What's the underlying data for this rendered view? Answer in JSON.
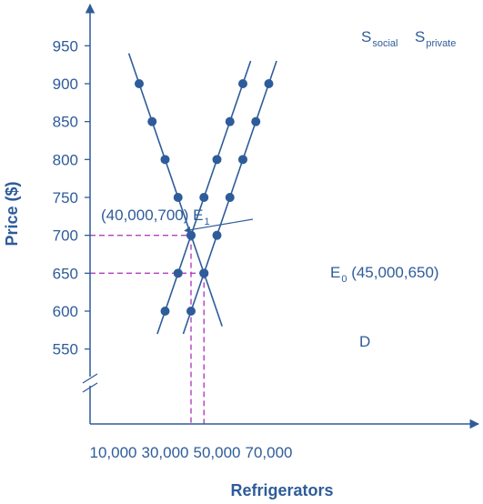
{
  "chart_data": {
    "type": "line",
    "xlabel": "Refrigerators",
    "ylabel": "Price ($)",
    "xlim": [
      0,
      75000
    ],
    "ylim": [
      490,
      970
    ],
    "x_ticks": [
      {
        "value": 10000,
        "label": "10,000"
      },
      {
        "value": 30000,
        "label": "30,000"
      },
      {
        "value": 50000,
        "label": "50,000"
      },
      {
        "value": 70000,
        "label": "70,000"
      }
    ],
    "y_ticks": [
      {
        "value": 550,
        "label": "550"
      },
      {
        "value": 600,
        "label": "600"
      },
      {
        "value": 650,
        "label": "650"
      },
      {
        "value": 700,
        "label": "700"
      },
      {
        "value": 750,
        "label": "750"
      },
      {
        "value": 800,
        "label": "800"
      },
      {
        "value": 850,
        "label": "850"
      },
      {
        "value": 900,
        "label": "900"
      },
      {
        "value": 950,
        "label": "950"
      }
    ],
    "axis_break": "y",
    "series": [
      {
        "name": "D",
        "points": [
          [
            20000,
            900
          ],
          [
            25000,
            850
          ],
          [
            30000,
            800
          ],
          [
            35000,
            750
          ],
          [
            40000,
            700
          ],
          [
            45000,
            650
          ]
        ],
        "line_extent": [
          [
            16000,
            940
          ],
          [
            52000,
            580
          ]
        ]
      },
      {
        "name": "S",
        "name_sub": "social",
        "points": [
          [
            30000,
            600
          ],
          [
            35000,
            650
          ],
          [
            40000,
            700
          ],
          [
            45000,
            750
          ],
          [
            50000,
            800
          ],
          [
            55000,
            850
          ],
          [
            60000,
            900
          ]
        ],
        "line_extent": [
          [
            27000,
            570
          ],
          [
            63000,
            930
          ]
        ]
      },
      {
        "name": "S",
        "name_sub": "private",
        "points": [
          [
            40000,
            600
          ],
          [
            45000,
            650
          ],
          [
            50000,
            700
          ],
          [
            55000,
            750
          ],
          [
            60000,
            800
          ],
          [
            65000,
            850
          ],
          [
            70000,
            900
          ]
        ],
        "line_extent": [
          [
            37000,
            570
          ],
          [
            73000,
            930
          ]
        ]
      }
    ],
    "annotations": [
      {
        "text": "(40,000,700) E",
        "sub": "1",
        "point": [
          40000,
          700
        ]
      },
      {
        "text": "E",
        "sub": "0",
        "suffix": " (45,000,650)",
        "point": [
          45000,
          650
        ]
      }
    ],
    "reference_lines": [
      {
        "point": [
          40000,
          700
        ]
      },
      {
        "point": [
          45000,
          650
        ]
      }
    ],
    "colors": {
      "line": "#2e5c9a",
      "marker": "#2e5c9a",
      "reference": "#b23fc0",
      "text": "#2e5c9a"
    }
  }
}
